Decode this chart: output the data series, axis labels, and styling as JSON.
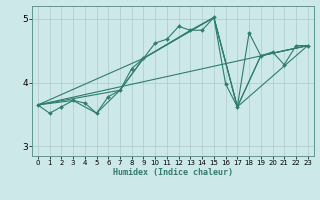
{
  "title": "",
  "xlabel": "Humidex (Indice chaleur)",
  "bg_color": "#cce8e8",
  "line_color": "#2e7d6e",
  "grid_color": "#aacccc",
  "xlim": [
    -0.5,
    23.5
  ],
  "ylim": [
    2.85,
    5.2
  ],
  "yticks": [
    3,
    4,
    5
  ],
  "xticks": [
    0,
    1,
    2,
    3,
    4,
    5,
    6,
    7,
    8,
    9,
    10,
    11,
    12,
    13,
    14,
    15,
    16,
    17,
    18,
    19,
    20,
    21,
    22,
    23
  ],
  "main_x": [
    0,
    1,
    2,
    3,
    4,
    5,
    6,
    7,
    8,
    9,
    10,
    11,
    12,
    13,
    14,
    15,
    16,
    17,
    18,
    19,
    20,
    21,
    22,
    23
  ],
  "main_y": [
    3.65,
    3.52,
    3.62,
    3.72,
    3.68,
    3.52,
    3.78,
    3.88,
    4.22,
    4.38,
    4.62,
    4.68,
    4.88,
    4.82,
    4.82,
    5.02,
    3.98,
    3.62,
    4.78,
    4.42,
    4.48,
    4.28,
    4.58,
    4.58
  ],
  "line2_x": [
    0,
    23
  ],
  "line2_y": [
    3.65,
    4.58
  ],
  "line3_x": [
    0,
    9,
    15,
    17,
    23
  ],
  "line3_y": [
    3.65,
    4.38,
    5.02,
    3.62,
    4.58
  ],
  "line4_x": [
    0,
    7,
    9,
    15,
    17,
    19,
    23
  ],
  "line4_y": [
    3.65,
    3.88,
    4.38,
    5.02,
    3.62,
    4.42,
    4.58
  ],
  "line5_x": [
    0,
    3,
    5,
    7,
    9,
    13,
    15,
    17,
    19,
    23
  ],
  "line5_y": [
    3.65,
    3.72,
    3.52,
    3.88,
    4.38,
    4.82,
    5.02,
    3.62,
    4.42,
    4.58
  ]
}
